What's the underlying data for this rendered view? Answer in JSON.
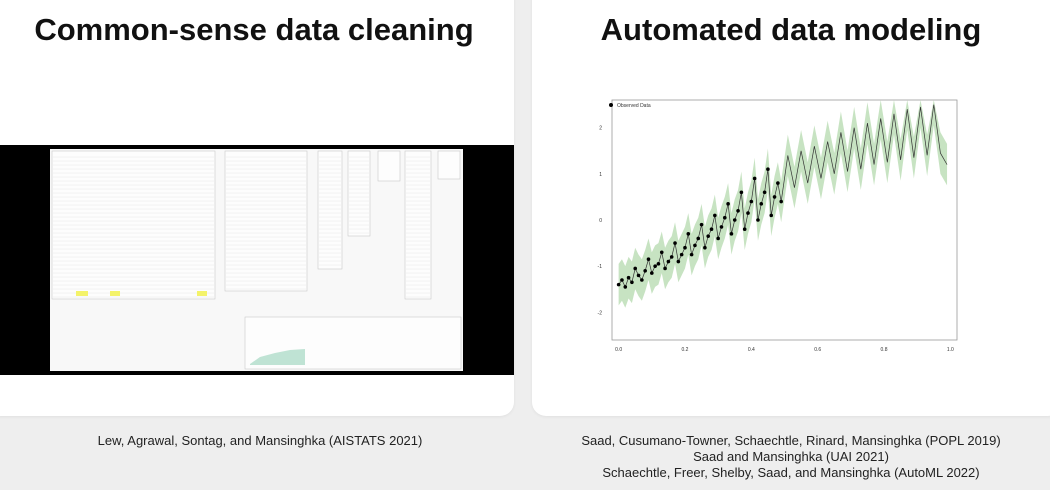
{
  "left": {
    "title": "Common-sense data cleaning",
    "citation": "Lew, Agrawal, Sontag, and Mansinghka (AISTATS 2021)"
  },
  "right": {
    "title": "Automated data modeling",
    "citations": [
      "Saad, Cusumano-Towner, Schaechtle, Rinard, Mansinghka (POPL 2019)",
      "Saad and Mansinghka (UAI 2021)",
      "Schaechtle, Freer, Shelby, Saad, and Mansinghka (AutoML 2022)"
    ]
  },
  "colors": {
    "band": "#b9dcb3",
    "line": "#333333",
    "points": "#000000",
    "highlight": "#f4f36a"
  },
  "chart_data": {
    "type": "line",
    "legend": [
      "Observed Data"
    ],
    "legend_position": "top-left",
    "xlim": [
      -0.02,
      1.02
    ],
    "ylim": [
      -2.6,
      2.6
    ],
    "xticks": [
      "0.0",
      "0.2",
      "0.4",
      "0.6",
      "0.8",
      "1.0"
    ],
    "yticks": [
      "2",
      "1",
      "0",
      "-1",
      "-2"
    ],
    "xtick_values": [
      0,
      0.2,
      0.4,
      0.6,
      0.8,
      1.0
    ],
    "ytick_values": [
      2,
      1,
      0,
      -1,
      -2
    ],
    "observed": {
      "x": [
        0.0,
        0.01,
        0.02,
        0.03,
        0.04,
        0.05,
        0.06,
        0.07,
        0.08,
        0.09,
        0.1,
        0.11,
        0.12,
        0.13,
        0.14,
        0.15,
        0.16,
        0.17,
        0.18,
        0.19,
        0.2,
        0.21,
        0.22,
        0.23,
        0.24,
        0.25,
        0.26,
        0.27,
        0.28,
        0.29,
        0.3,
        0.31,
        0.32,
        0.33,
        0.34,
        0.35,
        0.36,
        0.37,
        0.38,
        0.39,
        0.4,
        0.41,
        0.42,
        0.43,
        0.44,
        0.45,
        0.46,
        0.47,
        0.48,
        0.49
      ],
      "y": [
        -1.4,
        -1.3,
        -1.45,
        -1.25,
        -1.35,
        -1.05,
        -1.2,
        -1.3,
        -1.1,
        -0.85,
        -1.15,
        -1.0,
        -0.95,
        -0.7,
        -1.05,
        -0.9,
        -0.8,
        -0.5,
        -0.9,
        -0.75,
        -0.6,
        -0.3,
        -0.75,
        -0.55,
        -0.4,
        -0.1,
        -0.6,
        -0.35,
        -0.2,
        0.1,
        -0.4,
        -0.15,
        0.05,
        0.35,
        -0.3,
        0.0,
        0.2,
        0.6,
        -0.2,
        0.15,
        0.4,
        0.9,
        0.0,
        0.35,
        0.6,
        1.1,
        0.1,
        0.5,
        0.8,
        0.4
      ]
    },
    "forecast": {
      "x": [
        0.49,
        0.51,
        0.53,
        0.55,
        0.57,
        0.59,
        0.61,
        0.63,
        0.65,
        0.67,
        0.69,
        0.71,
        0.73,
        0.75,
        0.77,
        0.79,
        0.81,
        0.83,
        0.85,
        0.87,
        0.89,
        0.91,
        0.93,
        0.95,
        0.97,
        0.99
      ],
      "y": [
        0.4,
        1.4,
        0.7,
        1.5,
        0.8,
        1.6,
        0.9,
        1.7,
        1.0,
        1.9,
        1.05,
        2.0,
        1.1,
        2.1,
        1.2,
        2.2,
        1.25,
        2.3,
        1.3,
        2.4,
        1.35,
        2.45,
        1.4,
        2.5,
        1.45,
        1.2
      ]
    },
    "band": {
      "lower_offset": -0.45,
      "upper_offset": 0.45
    }
  }
}
